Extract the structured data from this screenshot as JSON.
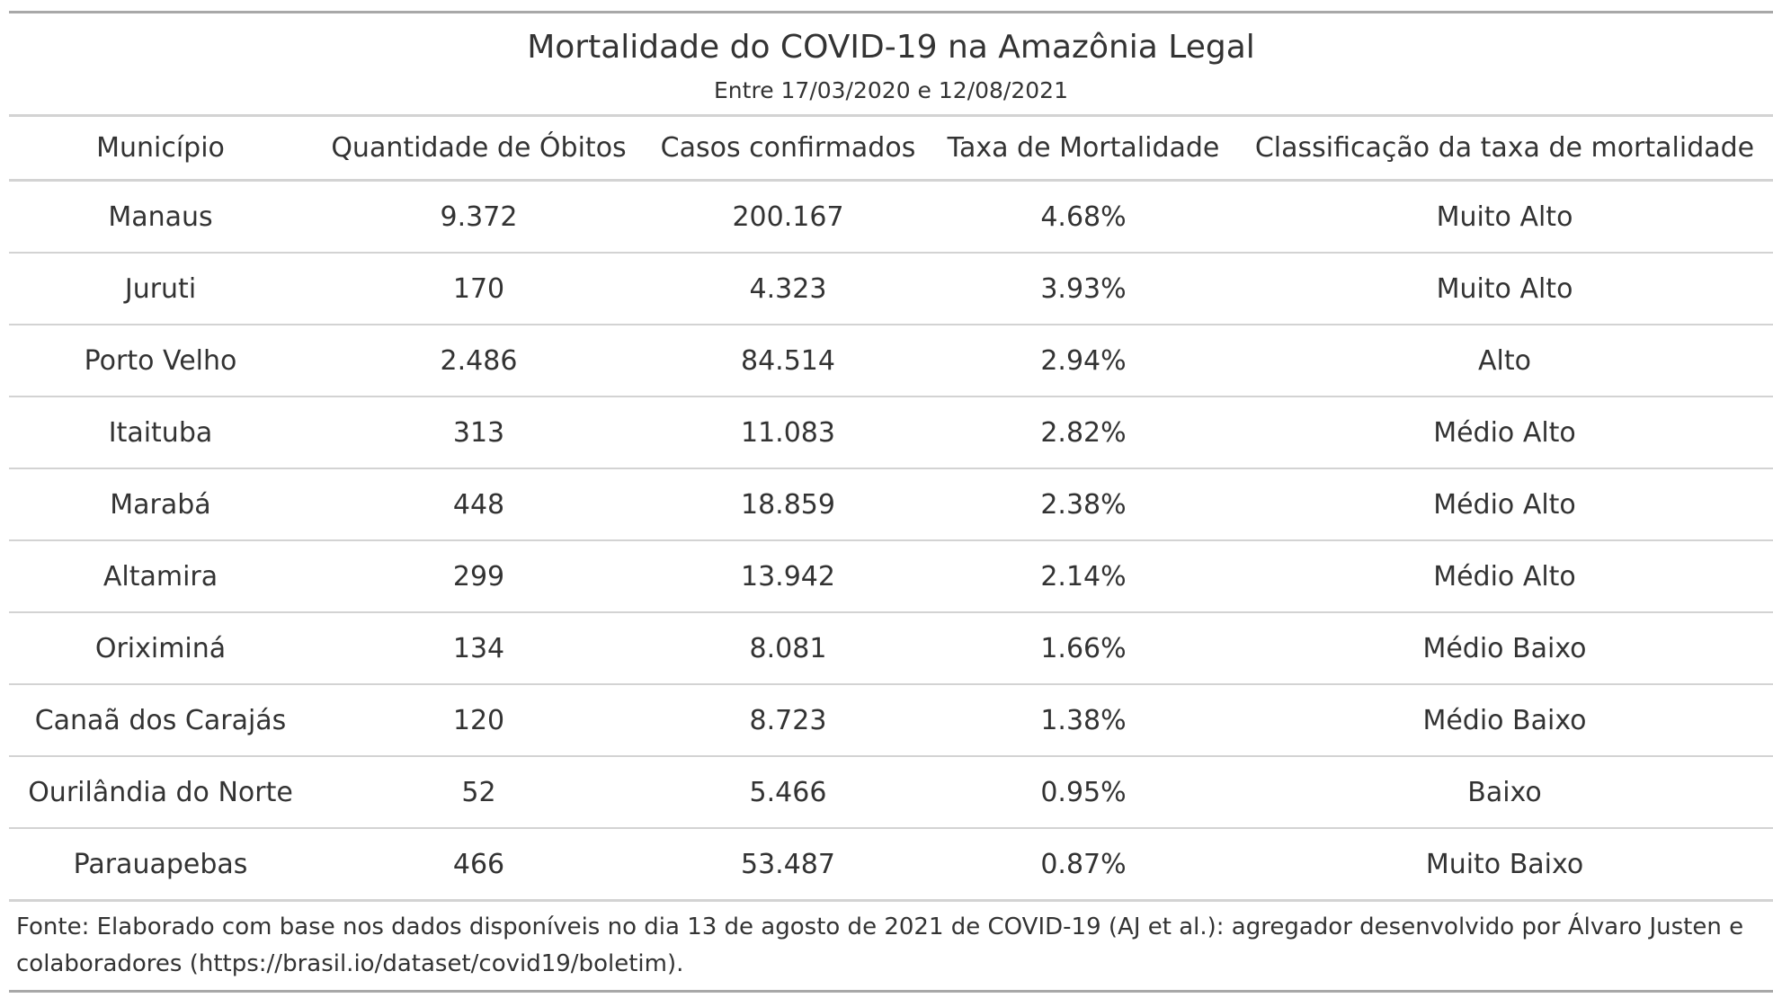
{
  "chart_data": {
    "type": "table",
    "title": "Mortalidade do COVID-19 na Amazônia Legal",
    "subtitle": "Entre 17/03/2020 e 12/08/2021",
    "columns": [
      "Município",
      "Quantidade de Óbitos",
      "Casos confirmados",
      "Taxa de Mortalidade",
      "Classificação da taxa de mortalidade"
    ],
    "rows": [
      [
        "Manaus",
        "9.372",
        "200.167",
        "4.68%",
        "Muito Alto"
      ],
      [
        "Juruti",
        "170",
        "4.323",
        "3.93%",
        "Muito Alto"
      ],
      [
        "Porto Velho",
        "2.486",
        "84.514",
        "2.94%",
        "Alto"
      ],
      [
        "Itaituba",
        "313",
        "11.083",
        "2.82%",
        "Médio Alto"
      ],
      [
        "Marabá",
        "448",
        "18.859",
        "2.38%",
        "Médio Alto"
      ],
      [
        "Altamira",
        "299",
        "13.942",
        "2.14%",
        "Médio Alto"
      ],
      [
        "Oriximiná",
        "134",
        "8.081",
        "1.66%",
        "Médio Baixo"
      ],
      [
        "Canaã dos Carajás",
        "120",
        "8.723",
        "1.38%",
        "Médio Baixo"
      ],
      [
        "Ourilândia do Norte",
        "52",
        "5.466",
        "0.95%",
        "Baixo"
      ],
      [
        "Parauapebas",
        "466",
        "53.487",
        "0.87%",
        "Muito Baixo"
      ]
    ],
    "footnote": "Fonte: Elaborado com base nos dados disponíveis no dia 13 de agosto de 2021 de COVID-19 (AJ et al.): agregador desenvolvido por Álvaro Justen e colaboradores (https://brasil.io/dataset/covid19/boletim)."
  }
}
